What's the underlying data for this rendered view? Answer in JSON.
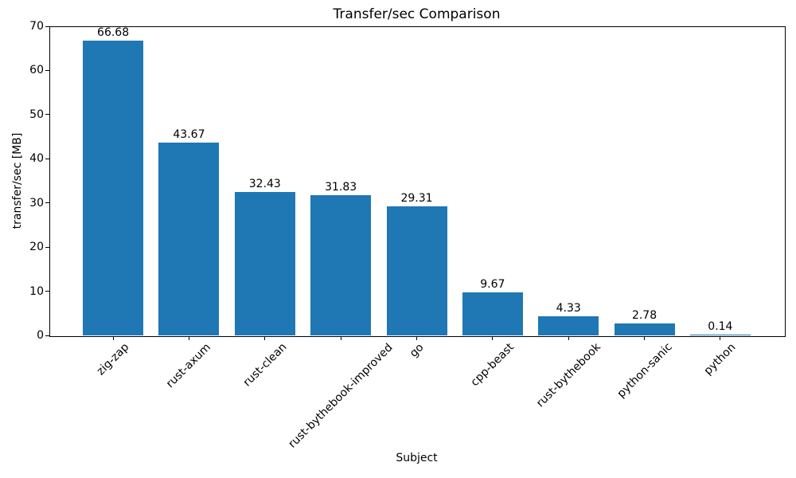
{
  "chart_data": {
    "type": "bar",
    "title": "Transfer/sec Comparison",
    "xlabel": "Subject",
    "ylabel": "transfer/sec [MB]",
    "categories": [
      "zig-zap",
      "rust-axum",
      "rust-clean",
      "rust-bythebook-improved",
      "go",
      "cpp-beast",
      "rust-bythebook",
      "python-sanic",
      "python"
    ],
    "values": [
      66.68,
      43.67,
      32.43,
      31.83,
      29.31,
      9.67,
      4.33,
      2.78,
      0.14
    ],
    "bar_value_labels": [
      "66.68",
      "43.67",
      "32.43",
      "31.83",
      "29.31",
      "9.67",
      "4.33",
      "2.78",
      "0.14"
    ],
    "ytick_labels": [
      "0",
      "10",
      "20",
      "30",
      "40",
      "50",
      "60",
      "70"
    ],
    "yticks": [
      0,
      10,
      20,
      30,
      40,
      50,
      60,
      70
    ],
    "ylim": [
      0,
      70
    ],
    "bar_color": "#1f77b4",
    "axis_color": "#000000",
    "text_color": "#000000",
    "background_color": "#ffffff",
    "xtick_rotation_deg": 45,
    "grid": false,
    "legend": false
  }
}
